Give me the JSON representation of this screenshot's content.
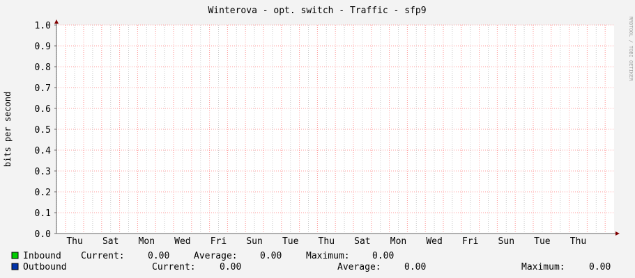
{
  "chart_data": {
    "type": "line",
    "title": "Winterova - opt. switch - Traffic - sfp9",
    "ylabel": "bits per second",
    "xlabel": "",
    "ylim": [
      0,
      1.0
    ],
    "yticks": [
      "0.0",
      "0.1",
      "0.2",
      "0.3",
      "0.4",
      "0.5",
      "0.6",
      "0.7",
      "0.8",
      "0.9",
      "1.0"
    ],
    "xticks": [
      "Thu",
      "Sat",
      "Mon",
      "Wed",
      "Fri",
      "Sun",
      "Tue",
      "Thu",
      "Sat",
      "Mon",
      "Wed",
      "Fri",
      "Sun",
      "Tue",
      "Thu"
    ],
    "grid": true,
    "watermark": "RRDTOOL / TOBI OETIKER",
    "series": [
      {
        "name": "Inbound",
        "color": "#00cc00",
        "values": [
          0
        ],
        "current_label": "Current:",
        "current": "0.00",
        "average_label": "Average:",
        "average": "0.00",
        "maximum_label": "Maximum:",
        "maximum": "0.00"
      },
      {
        "name": "Outbound",
        "color": "#0033aa",
        "values": [
          0
        ],
        "current_label": "Current:",
        "current": "0.00",
        "average_label": "Average:",
        "average": "0.00",
        "maximum_label": "Maximum:",
        "maximum": "0.00"
      }
    ],
    "colors": {
      "background": "#f3f3f3",
      "plot": "#ffffff",
      "major_grid": "#ff9999",
      "minor_grid": "#cccccc",
      "axis": "#800000"
    }
  }
}
